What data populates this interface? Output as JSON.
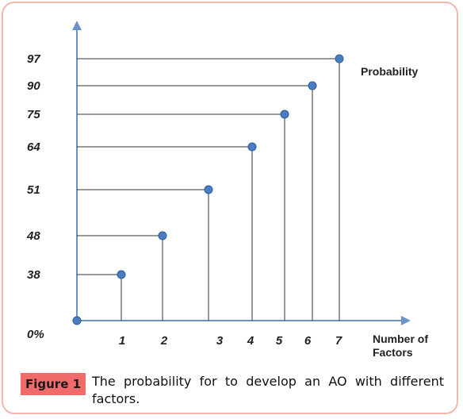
{
  "chart_data": {
    "type": "scatter",
    "x": [
      0,
      1,
      2,
      3,
      4,
      5,
      6,
      7
    ],
    "y": [
      0,
      38,
      48,
      51,
      64,
      75,
      90,
      97
    ],
    "x_tick_labels": [
      "1",
      "2",
      "3",
      "4",
      "5",
      "6",
      "7"
    ],
    "y_tick_labels": [
      "0%",
      "38",
      "48",
      "51",
      "64",
      "75",
      "90",
      "97"
    ],
    "xlabel": "Number of\nFactors",
    "series_label": "Probability",
    "grid": false,
    "colors": {
      "axis": "#6b93c7",
      "point": "#4a7ec0",
      "lines": "#333333"
    }
  },
  "caption": {
    "label": "Figure 1",
    "text": "The probability for to develop an AO with different factors."
  }
}
